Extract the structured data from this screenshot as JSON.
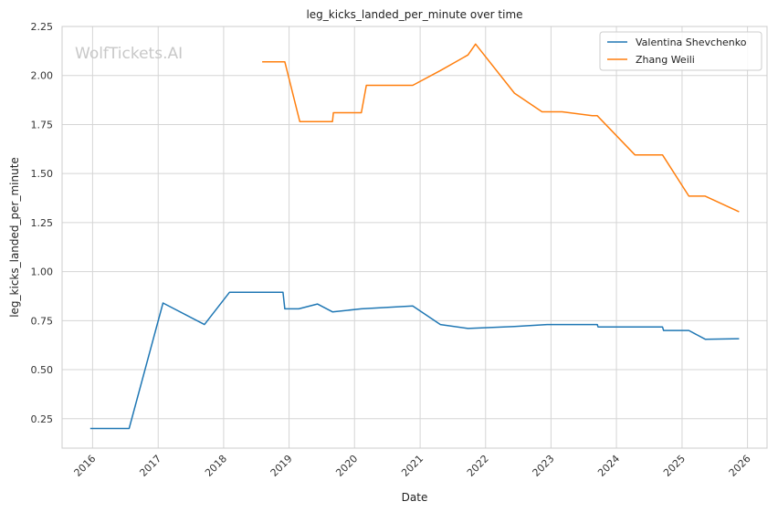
{
  "chart_data": {
    "type": "line",
    "title": "leg_kicks_landed_per_minute over time",
    "xlabel": "Date",
    "ylabel": "leg_kicks_landed_per_minute",
    "watermark": "WolfTickets.AI",
    "x_ticks": [
      "2016",
      "2017",
      "2018",
      "2019",
      "2020",
      "2021",
      "2022",
      "2023",
      "2024",
      "2025",
      "2026"
    ],
    "y_ticks": [
      "0.25",
      "0.50",
      "0.75",
      "1.00",
      "1.25",
      "1.50",
      "1.75",
      "2.00",
      "2.25"
    ],
    "xlim": [
      "2015-07-15",
      "2026-04-20"
    ],
    "ylim": [
      0.1,
      2.25
    ],
    "grid": true,
    "legend_position": "top-right",
    "series": [
      {
        "name": "Valentina Shevchenko",
        "color": "#1f77b4",
        "points": [
          [
            "2015-12-19",
            0.2
          ],
          [
            "2016-07-23",
            0.2
          ],
          [
            "2017-01-28",
            0.84
          ],
          [
            "2017-09-16",
            0.73
          ],
          [
            "2018-02-03",
            0.895
          ],
          [
            "2018-11-28",
            0.895
          ],
          [
            "2018-12-08",
            0.81
          ],
          [
            "2019-02-24",
            0.81
          ],
          [
            "2019-06-08",
            0.835
          ],
          [
            "2019-08-31",
            0.795
          ],
          [
            "2020-02-08",
            0.81
          ],
          [
            "2020-11-21",
            0.825
          ],
          [
            "2021-04-24",
            0.73
          ],
          [
            "2021-09-25",
            0.71
          ],
          [
            "2022-06-11",
            0.72
          ],
          [
            "2022-12-10",
            0.73
          ],
          [
            "2023-03-04",
            0.73
          ],
          [
            "2023-09-16",
            0.73
          ],
          [
            "2023-09-20",
            0.718
          ],
          [
            "2024-09-14",
            0.718
          ],
          [
            "2024-09-20",
            0.7
          ],
          [
            "2025-02-08",
            0.7
          ],
          [
            "2025-05-10",
            0.655
          ],
          [
            "2025-11-15",
            0.658
          ]
        ]
      },
      {
        "name": "Zhang Weili",
        "color": "#ff7f0e",
        "points": [
          [
            "2018-08-04",
            2.07
          ],
          [
            "2018-12-08",
            2.07
          ],
          [
            "2019-03-02",
            1.765
          ],
          [
            "2019-08-31",
            1.765
          ],
          [
            "2019-09-05",
            1.81
          ],
          [
            "2020-02-08",
            1.81
          ],
          [
            "2020-03-07",
            1.95
          ],
          [
            "2020-11-21",
            1.95
          ],
          [
            "2021-04-24",
            2.025
          ],
          [
            "2021-09-25",
            2.105
          ],
          [
            "2021-11-06",
            2.16
          ],
          [
            "2022-06-11",
            1.91
          ],
          [
            "2022-11-12",
            1.815
          ],
          [
            "2023-03-04",
            1.815
          ],
          [
            "2023-08-19",
            1.795
          ],
          [
            "2023-09-16",
            1.795
          ],
          [
            "2024-04-13",
            1.595
          ],
          [
            "2024-09-14",
            1.595
          ],
          [
            "2025-02-08",
            1.385
          ],
          [
            "2025-05-10",
            1.385
          ],
          [
            "2025-11-15",
            1.305
          ]
        ]
      }
    ]
  }
}
